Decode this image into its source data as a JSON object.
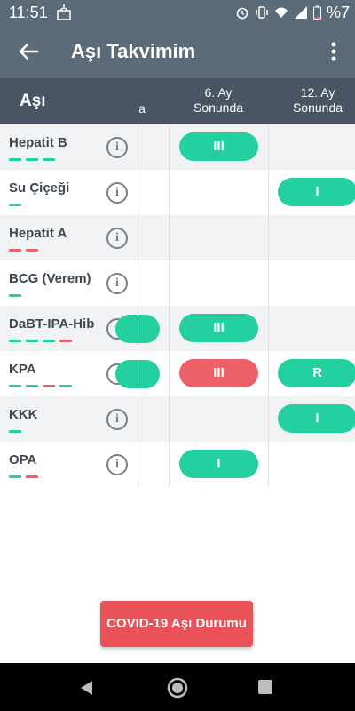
{
  "status_bar": {
    "time": "11:51",
    "battery_percent": "%7"
  },
  "app_bar": {
    "title": "Aşı Takvimim"
  },
  "table": {
    "header": {
      "asi": "Aşı",
      "col_partial": "a",
      "col_6": "6. Ay\nSonunda",
      "col_12": "12. Ay\nSonunda"
    },
    "rows": [
      {
        "name": "Hepatit B",
        "dashes": [
          "#24cfa0",
          "#24cfa0",
          "#24cfa0"
        ],
        "partial": null,
        "col6": {
          "label": "III",
          "color": "green"
        },
        "col12": null
      },
      {
        "name": "Su Çiçeği",
        "dashes": [
          "#24cfa0"
        ],
        "partial": null,
        "col6": null,
        "col12": {
          "label": "I",
          "color": "green"
        }
      },
      {
        "name": "Hepatit A",
        "dashes": [
          "#ec6067",
          "#ec6067"
        ],
        "partial": null,
        "col6": null,
        "col12": null
      },
      {
        "name": "BCG (Verem)",
        "dashes": [
          "#24cfa0"
        ],
        "partial": null,
        "col6": null,
        "col12": null
      },
      {
        "name": "DaBT-IPA-Hib",
        "dashes": [
          "#24cfa0",
          "#24cfa0",
          "#24cfa0",
          "#ec6067"
        ],
        "partial": {
          "color": "green"
        },
        "col6": {
          "label": "III",
          "color": "green"
        },
        "col12": null
      },
      {
        "name": "KPA",
        "dashes": [
          "#24cfa0",
          "#24cfa0",
          "#ec6067",
          "#24cfa0"
        ],
        "partial": {
          "color": "green"
        },
        "col6": {
          "label": "III",
          "color": "red"
        },
        "col12": {
          "label": "R",
          "color": "green"
        }
      },
      {
        "name": "KKK",
        "dashes": [
          "#24cfa0"
        ],
        "partial": null,
        "col6": null,
        "col12": {
          "label": "I",
          "color": "green"
        }
      },
      {
        "name": "OPA",
        "dashes": [
          "#24cfa0",
          "#ec6067"
        ],
        "partial": null,
        "col6": {
          "label": "I",
          "color": "green"
        },
        "col12": null
      }
    ]
  },
  "covid_button": {
    "label": "COVID-19 Aşı Durumu"
  },
  "colors": {
    "appbar": "#5b6b77",
    "header": "#4a5563",
    "green": "#24cfa0",
    "red": "#ec6067"
  },
  "icons": [
    "back-arrow-icon",
    "more-vert-icon",
    "info-icon",
    "nav-back-icon",
    "nav-home-icon",
    "nav-recents-icon"
  ]
}
